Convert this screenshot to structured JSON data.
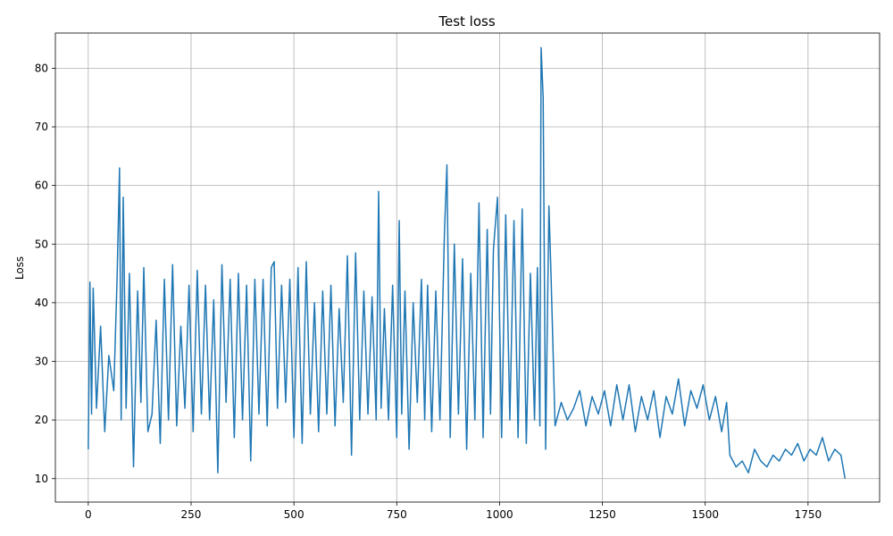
{
  "chart_data": {
    "type": "line",
    "title": "Test loss",
    "xlabel": "",
    "ylabel": "Loss",
    "xlim": [
      -80,
      1924
    ],
    "ylim": [
      6,
      86
    ],
    "xticks": [
      0,
      250,
      500,
      750,
      1000,
      1250,
      1500,
      1750
    ],
    "yticks": [
      10,
      20,
      30,
      40,
      50,
      60,
      70,
      80
    ],
    "grid": true,
    "color": "#1f77b4",
    "series": [
      {
        "x": [
          0,
          4,
          8,
          12,
          20,
          30,
          40,
          50,
          62,
          70,
          76,
          80,
          85,
          92,
          100,
          110,
          120,
          128,
          135,
          145,
          155,
          165,
          175,
          185,
          195,
          205,
          215,
          225,
          235,
          245,
          255,
          265,
          275,
          285,
          295,
          305,
          315,
          325,
          335,
          345,
          355,
          365,
          375,
          385,
          395,
          405,
          415,
          425,
          435,
          445,
          452,
          460,
          470,
          480,
          490,
          500,
          510,
          520,
          530,
          540,
          550,
          560,
          570,
          580,
          590,
          600,
          610,
          620,
          630,
          640,
          650,
          660,
          670,
          680,
          690,
          700,
          706,
          712,
          720,
          730,
          740,
          750,
          756,
          762,
          770,
          780,
          790,
          800,
          810,
          818,
          825,
          835,
          845,
          855,
          866,
          872,
          880,
          890,
          900,
          910,
          920,
          930,
          940,
          950,
          960,
          970,
          978,
          985,
          995,
          1005,
          1015,
          1025,
          1035,
          1045,
          1055,
          1065,
          1075,
          1085,
          1092,
          1098,
          1101,
          1106,
          1112,
          1120,
          1125,
          1135,
          1150,
          1165,
          1180,
          1195,
          1210,
          1225,
          1240,
          1255,
          1270,
          1285,
          1300,
          1315,
          1330,
          1345,
          1360,
          1375,
          1390,
          1405,
          1420,
          1435,
          1450,
          1465,
          1480,
          1495,
          1510,
          1525,
          1540,
          1552,
          1560,
          1575,
          1590,
          1605,
          1620,
          1635,
          1650,
          1665,
          1680,
          1695,
          1710,
          1725,
          1740,
          1755,
          1770,
          1785,
          1800,
          1815,
          1830,
          1840
        ],
        "y": [
          15,
          43.5,
          21,
          42.5,
          22,
          36,
          18,
          31,
          25,
          44,
          63,
          20,
          58,
          22,
          45,
          12,
          42,
          23,
          46,
          18,
          21,
          37,
          16,
          44,
          20,
          46.5,
          19,
          36,
          22,
          43,
          18,
          45.5,
          21,
          43,
          20,
          40.5,
          11,
          46.5,
          23,
          44,
          17,
          45,
          20,
          43,
          13,
          44,
          21,
          44,
          19,
          46,
          47,
          22,
          43,
          23,
          44,
          17,
          46,
          16,
          47,
          21,
          40,
          18,
          42,
          21,
          43,
          19,
          39,
          23,
          48,
          14,
          48.5,
          20,
          42,
          21,
          41,
          20,
          59,
          22,
          39,
          20,
          43,
          17,
          54,
          21,
          42,
          15,
          40,
          23,
          44,
          20,
          43,
          18,
          42,
          20,
          52,
          63.5,
          17,
          50,
          21,
          47.5,
          15,
          45,
          20,
          57,
          17,
          52.5,
          21,
          49,
          58,
          17,
          55,
          20,
          54,
          17,
          56,
          16,
          45,
          20,
          46,
          19,
          83.5,
          75,
          15,
          56.5,
          45,
          19,
          23,
          20,
          22,
          25,
          19,
          24,
          21,
          25,
          19,
          26,
          20,
          26,
          18,
          24,
          20,
          25,
          17,
          24,
          21,
          27,
          19,
          25,
          22,
          26,
          20,
          24,
          18,
          23,
          14,
          12,
          13,
          11,
          15,
          13,
          12,
          14,
          13,
          15,
          14,
          16,
          13,
          15,
          14,
          17,
          13,
          15,
          14,
          10
        ]
      }
    ]
  }
}
